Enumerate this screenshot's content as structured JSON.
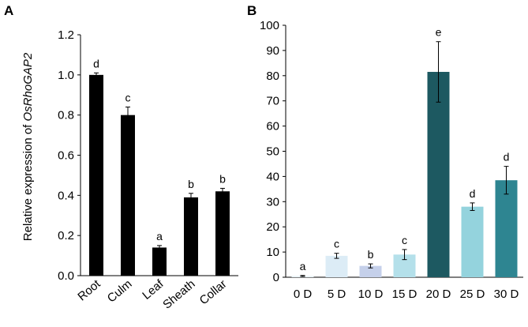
{
  "chart_data": [
    {
      "panel_label": "A",
      "type": "bar",
      "ylabel_prefix": "Relative expression of ",
      "ylabel_gene": "OsRhoGAP2",
      "ylim": [
        0,
        1.2
      ],
      "yticks": [
        "0.0",
        "0.2",
        "0.4",
        "0.6",
        "0.8",
        "1.0",
        "1.2"
      ],
      "categories": [
        "Root",
        "Culm",
        "Leaf",
        "Sheath",
        "Collar"
      ],
      "values": [
        1.0,
        0.8,
        0.14,
        0.39,
        0.42
      ],
      "errors": [
        0.01,
        0.04,
        0.01,
        0.02,
        0.015
      ],
      "significance": [
        "d",
        "c",
        "a",
        "b",
        "b"
      ],
      "colors": [
        "#000000",
        "#000000",
        "#000000",
        "#000000",
        "#000000"
      ],
      "grid": false
    },
    {
      "panel_label": "B",
      "type": "bar",
      "ylim": [
        0,
        100
      ],
      "yticks": [
        "0",
        "10",
        "20",
        "30",
        "40",
        "50",
        "60",
        "70",
        "80",
        "90",
        "100"
      ],
      "categories": [
        "0 D",
        "5 D",
        "10 D",
        "15 D",
        "20 D",
        "25 D",
        "30 D"
      ],
      "values": [
        0.5,
        8.5,
        4.5,
        9,
        81.5,
        28,
        38.5
      ],
      "errors": [
        0.2,
        1.0,
        0.8,
        2.0,
        12.0,
        1.5,
        5.5
      ],
      "significance": [
        "a",
        "c",
        "b",
        "c",
        "e",
        "d",
        "d"
      ],
      "colors": [
        "#e8f2f6",
        "#dcecf6",
        "#c5d0ea",
        "#b4e0ea",
        "#1d5961",
        "#94d3dd",
        "#2e8591"
      ],
      "grid": false
    }
  ]
}
